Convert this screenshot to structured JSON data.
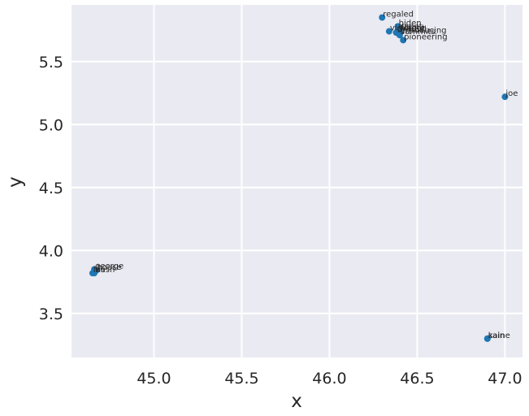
{
  "chart_data": {
    "type": "scatter",
    "title": "",
    "xlabel": "x",
    "ylabel": "y",
    "xlim": [
      44.53,
      47.1
    ],
    "ylim": [
      3.15,
      5.95
    ],
    "xticks": [
      45.0,
      45.5,
      46.0,
      46.5,
      47.0
    ],
    "yticks": [
      3.5,
      4.0,
      4.5,
      5.0,
      5.5
    ],
    "xtick_labels": [
      "45.0",
      "45.5",
      "46.0",
      "46.5",
      "47.0"
    ],
    "ytick_labels": [
      "3.5",
      "4.0",
      "4.5",
      "5.0",
      "5.5"
    ],
    "grid": true,
    "background": "#eaeaf2",
    "point_color": "#1f77b4",
    "points": [
      {
        "label": "regaled",
        "x": 46.3,
        "y": 5.85
      },
      {
        "label": "biden",
        "x": 46.39,
        "y": 5.78
      },
      {
        "label": "dapat",
        "x": 46.39,
        "y": 5.75
      },
      {
        "label": "forget",
        "x": 46.4,
        "y": 5.74
      },
      {
        "label": "cymbal",
        "x": 46.38,
        "y": 5.73
      },
      {
        "label": "vigilante",
        "x": 46.34,
        "y": 5.74
      },
      {
        "label": "introducing",
        "x": 46.4,
        "y": 5.72
      },
      {
        "label": "summits",
        "x": 46.4,
        "y": 5.71
      },
      {
        "label": "pioneering",
        "x": 46.42,
        "y": 5.67
      },
      {
        "label": "joe",
        "x": 47.0,
        "y": 5.22
      },
      {
        "label": "george",
        "x": 44.66,
        "y": 3.85
      },
      {
        "label": "house",
        "x": 44.67,
        "y": 3.84
      },
      {
        "label": "bush",
        "x": 44.66,
        "y": 3.82
      },
      {
        "label": "his",
        "x": 44.65,
        "y": 3.82
      },
      {
        "label": "sain",
        "x": 46.9,
        "y": 3.3
      },
      {
        "label": "kaine",
        "x": 46.9,
        "y": 3.3
      }
    ]
  }
}
